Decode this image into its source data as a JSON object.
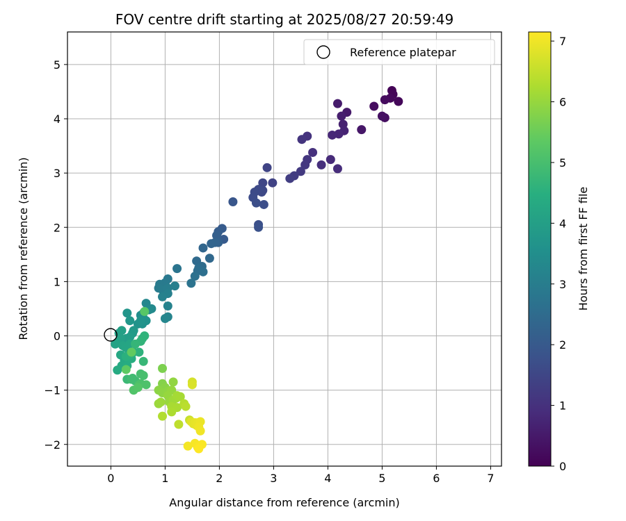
{
  "chart_data": {
    "type": "scatter",
    "title": "FOV centre drift starting at 2025/08/27 20:59:49",
    "xlabel": "Angular distance from reference (arcmin)",
    "ylabel": "Rotation from reference (arcmin)",
    "xlim": [
      -0.8,
      7.2
    ],
    "ylim": [
      -2.4,
      5.6
    ],
    "xticks": [
      0,
      1,
      2,
      3,
      4,
      5,
      6,
      7
    ],
    "yticks": [
      -2,
      -1,
      0,
      1,
      2,
      3,
      4,
      5
    ],
    "ytick_labels": [
      "−2",
      "−1",
      "0",
      "1",
      "2",
      "3",
      "4",
      "5"
    ],
    "grid": true,
    "colormap": "viridis",
    "colorbar": {
      "label": "Hours from first FF file",
      "range": [
        0,
        7.15
      ],
      "ticks": [
        0,
        1,
        2,
        3,
        4,
        5,
        6,
        7
      ]
    },
    "legend": {
      "position": "top-right",
      "entries": [
        {
          "label": "Reference platepar",
          "marker": "open-circle",
          "color": "#000000"
        }
      ]
    },
    "reference_point": {
      "x": 0,
      "y": 0
    },
    "points": [
      {
        "x": 5.18,
        "y": 4.52,
        "h": 0.05
      },
      {
        "x": 5.2,
        "y": 4.45,
        "h": 0.08
      },
      {
        "x": 5.3,
        "y": 4.32,
        "h": 0.12
      },
      {
        "x": 5.15,
        "y": 4.38,
        "h": 0.15
      },
      {
        "x": 5.05,
        "y": 4.35,
        "h": 0.2
      },
      {
        "x": 4.85,
        "y": 4.23,
        "h": 0.25
      },
      {
        "x": 5.05,
        "y": 4.02,
        "h": 0.28
      },
      {
        "x": 5.0,
        "y": 4.05,
        "h": 0.32
      },
      {
        "x": 4.62,
        "y": 3.8,
        "h": 0.45
      },
      {
        "x": 4.35,
        "y": 4.12,
        "h": 0.5
      },
      {
        "x": 4.18,
        "y": 4.28,
        "h": 0.55
      },
      {
        "x": 4.25,
        "y": 4.05,
        "h": 0.6
      },
      {
        "x": 4.28,
        "y": 3.9,
        "h": 0.65
      },
      {
        "x": 4.3,
        "y": 3.78,
        "h": 0.7
      },
      {
        "x": 4.2,
        "y": 3.72,
        "h": 0.75
      },
      {
        "x": 4.08,
        "y": 3.7,
        "h": 0.8
      },
      {
        "x": 4.05,
        "y": 3.25,
        "h": 0.85
      },
      {
        "x": 4.18,
        "y": 3.08,
        "h": 0.9
      },
      {
        "x": 3.88,
        "y": 3.15,
        "h": 0.95
      },
      {
        "x": 3.72,
        "y": 3.38,
        "h": 1.0
      },
      {
        "x": 3.62,
        "y": 3.68,
        "h": 1.05
      },
      {
        "x": 3.52,
        "y": 3.62,
        "h": 1.08
      },
      {
        "x": 3.62,
        "y": 3.25,
        "h": 1.12
      },
      {
        "x": 3.58,
        "y": 3.15,
        "h": 1.15
      },
      {
        "x": 3.5,
        "y": 3.03,
        "h": 1.2
      },
      {
        "x": 3.38,
        "y": 2.95,
        "h": 1.25
      },
      {
        "x": 3.3,
        "y": 2.9,
        "h": 1.3
      },
      {
        "x": 2.98,
        "y": 2.82,
        "h": 1.4
      },
      {
        "x": 2.88,
        "y": 3.1,
        "h": 1.45
      },
      {
        "x": 2.8,
        "y": 2.82,
        "h": 1.5
      },
      {
        "x": 2.8,
        "y": 2.68,
        "h": 1.55
      },
      {
        "x": 2.78,
        "y": 2.65,
        "h": 1.58
      },
      {
        "x": 2.72,
        "y": 2.7,
        "h": 1.6
      },
      {
        "x": 2.65,
        "y": 2.65,
        "h": 1.62
      },
      {
        "x": 2.62,
        "y": 2.55,
        "h": 1.65
      },
      {
        "x": 2.68,
        "y": 2.45,
        "h": 1.68
      },
      {
        "x": 2.82,
        "y": 2.42,
        "h": 1.7
      },
      {
        "x": 2.72,
        "y": 2.05,
        "h": 1.75
      },
      {
        "x": 2.72,
        "y": 2.0,
        "h": 1.8
      },
      {
        "x": 2.25,
        "y": 2.47,
        "h": 1.9
      },
      {
        "x": 2.08,
        "y": 1.78,
        "h": 2.0
      },
      {
        "x": 2.05,
        "y": 1.98,
        "h": 2.05
      },
      {
        "x": 1.98,
        "y": 1.92,
        "h": 2.1
      },
      {
        "x": 1.95,
        "y": 1.85,
        "h": 2.15
      },
      {
        "x": 1.98,
        "y": 1.72,
        "h": 2.2
      },
      {
        "x": 1.92,
        "y": 1.72,
        "h": 2.25
      },
      {
        "x": 1.85,
        "y": 1.7,
        "h": 2.3
      },
      {
        "x": 1.7,
        "y": 1.62,
        "h": 2.35
      },
      {
        "x": 1.82,
        "y": 1.43,
        "h": 2.4
      },
      {
        "x": 1.58,
        "y": 1.38,
        "h": 2.45
      },
      {
        "x": 1.68,
        "y": 1.28,
        "h": 2.5
      },
      {
        "x": 1.62,
        "y": 1.25,
        "h": 2.55
      },
      {
        "x": 1.6,
        "y": 1.2,
        "h": 2.58
      },
      {
        "x": 1.7,
        "y": 1.18,
        "h": 2.6
      },
      {
        "x": 1.55,
        "y": 1.1,
        "h": 2.65
      },
      {
        "x": 1.48,
        "y": 0.97,
        "h": 2.7
      },
      {
        "x": 1.22,
        "y": 1.24,
        "h": 2.75
      },
      {
        "x": 1.05,
        "y": 1.05,
        "h": 2.85
      },
      {
        "x": 1.0,
        "y": 0.98,
        "h": 2.9
      },
      {
        "x": 0.9,
        "y": 0.95,
        "h": 2.92
      },
      {
        "x": 0.88,
        "y": 0.88,
        "h": 2.95
      },
      {
        "x": 0.95,
        "y": 0.85,
        "h": 2.98
      },
      {
        "x": 1.05,
        "y": 0.88,
        "h": 3.0
      },
      {
        "x": 1.18,
        "y": 0.92,
        "h": 3.05
      },
      {
        "x": 1.05,
        "y": 0.78,
        "h": 3.08
      },
      {
        "x": 0.95,
        "y": 0.72,
        "h": 3.1
      },
      {
        "x": 1.05,
        "y": 0.55,
        "h": 3.15
      },
      {
        "x": 1.05,
        "y": 0.35,
        "h": 3.2
      },
      {
        "x": 1.0,
        "y": 0.32,
        "h": 3.25
      },
      {
        "x": 0.65,
        "y": 0.6,
        "h": 3.3
      },
      {
        "x": 0.75,
        "y": 0.5,
        "h": 3.35
      },
      {
        "x": 0.7,
        "y": 0.48,
        "h": 3.4
      },
      {
        "x": 0.6,
        "y": 0.42,
        "h": 3.45
      },
      {
        "x": 0.55,
        "y": 0.38,
        "h": 3.5
      },
      {
        "x": 0.62,
        "y": 0.3,
        "h": 3.55
      },
      {
        "x": 0.65,
        "y": 0.28,
        "h": 3.6
      },
      {
        "x": 0.58,
        "y": 0.22,
        "h": 3.62
      },
      {
        "x": 0.5,
        "y": 0.22,
        "h": 3.65
      },
      {
        "x": 0.55,
        "y": 0.28,
        "h": 3.68
      },
      {
        "x": 0.3,
        "y": 0.42,
        "h": 3.7
      },
      {
        "x": 0.35,
        "y": 0.28,
        "h": 3.75
      },
      {
        "x": 0.42,
        "y": 0.1,
        "h": 3.8
      },
      {
        "x": 0.4,
        "y": 0.05,
        "h": 3.85
      },
      {
        "x": 0.35,
        "y": -0.02,
        "h": 3.9
      },
      {
        "x": 0.28,
        "y": -0.05,
        "h": 3.95
      },
      {
        "x": 0.2,
        "y": 0.1,
        "h": 4.0
      },
      {
        "x": 0.15,
        "y": 0.05,
        "h": 4.02
      },
      {
        "x": 0.18,
        "y": -0.05,
        "h": 4.05
      },
      {
        "x": 0.12,
        "y": -0.12,
        "h": 4.08
      },
      {
        "x": 0.08,
        "y": -0.15,
        "h": 4.1
      },
      {
        "x": 0.22,
        "y": -0.18,
        "h": 4.15
      },
      {
        "x": 0.28,
        "y": -0.22,
        "h": 4.18
      },
      {
        "x": 0.35,
        "y": -0.15,
        "h": 4.2
      },
      {
        "x": 0.18,
        "y": -0.35,
        "h": 4.25
      },
      {
        "x": 0.25,
        "y": -0.45,
        "h": 4.28
      },
      {
        "x": 0.2,
        "y": -0.55,
        "h": 4.3
      },
      {
        "x": 0.12,
        "y": -0.63,
        "h": 4.35
      },
      {
        "x": 0.3,
        "y": -0.55,
        "h": 4.4
      },
      {
        "x": 0.38,
        "y": -0.42,
        "h": 4.45
      },
      {
        "x": 0.42,
        "y": -0.3,
        "h": 4.5
      },
      {
        "x": 0.28,
        "y": -0.38,
        "h": 4.52
      },
      {
        "x": 0.35,
        "y": -0.35,
        "h": 4.55
      },
      {
        "x": 0.52,
        "y": -0.3,
        "h": 4.58
      },
      {
        "x": 0.58,
        "y": -0.05,
        "h": 4.6
      },
      {
        "x": 0.62,
        "y": 0.0,
        "h": 4.62
      },
      {
        "x": 0.55,
        "y": -0.1,
        "h": 4.65
      },
      {
        "x": 0.45,
        "y": -0.15,
        "h": 4.7
      },
      {
        "x": 0.6,
        "y": -0.47,
        "h": 4.75
      },
      {
        "x": 0.3,
        "y": -0.8,
        "h": 4.8
      },
      {
        "x": 0.4,
        "y": -0.78,
        "h": 4.85
      },
      {
        "x": 0.45,
        "y": -0.83,
        "h": 4.88
      },
      {
        "x": 0.38,
        "y": -0.8,
        "h": 4.9
      },
      {
        "x": 0.55,
        "y": -0.7,
        "h": 4.95
      },
      {
        "x": 0.6,
        "y": -0.73,
        "h": 5.0
      },
      {
        "x": 0.55,
        "y": -0.88,
        "h": 5.05
      },
      {
        "x": 0.52,
        "y": -0.9,
        "h": 5.08
      },
      {
        "x": 0.65,
        "y": -0.9,
        "h": 5.1
      },
      {
        "x": 0.42,
        "y": -1.0,
        "h": 5.15
      },
      {
        "x": 0.5,
        "y": -0.95,
        "h": 5.2
      },
      {
        "x": 0.62,
        "y": 0.45,
        "h": 5.25
      },
      {
        "x": 0.28,
        "y": -0.62,
        "h": 5.35
      },
      {
        "x": 0.38,
        "y": -0.3,
        "h": 5.4
      },
      {
        "x": 0.95,
        "y": -0.6,
        "h": 5.7
      },
      {
        "x": 0.95,
        "y": -0.88,
        "h": 5.8
      },
      {
        "x": 1.0,
        "y": -0.95,
        "h": 5.85
      },
      {
        "x": 0.88,
        "y": -1.0,
        "h": 5.88
      },
      {
        "x": 0.95,
        "y": -1.05,
        "h": 5.9
      },
      {
        "x": 1.05,
        "y": -1.02,
        "h": 5.92
      },
      {
        "x": 1.15,
        "y": -0.85,
        "h": 5.95
      },
      {
        "x": 1.12,
        "y": -1.0,
        "h": 5.98
      },
      {
        "x": 1.05,
        "y": -1.1,
        "h": 6.0
      },
      {
        "x": 1.08,
        "y": -1.22,
        "h": 6.02
      },
      {
        "x": 0.88,
        "y": -1.25,
        "h": 6.05
      },
      {
        "x": 0.92,
        "y": -1.22,
        "h": 6.08
      },
      {
        "x": 1.15,
        "y": -1.18,
        "h": 6.1
      },
      {
        "x": 1.2,
        "y": -1.15,
        "h": 6.12
      },
      {
        "x": 1.22,
        "y": -1.1,
        "h": 6.15
      },
      {
        "x": 1.28,
        "y": -1.12,
        "h": 6.18
      },
      {
        "x": 1.12,
        "y": -1.3,
        "h": 6.2
      },
      {
        "x": 1.22,
        "y": -1.32,
        "h": 6.22
      },
      {
        "x": 1.12,
        "y": -1.4,
        "h": 6.25
      },
      {
        "x": 0.95,
        "y": -1.48,
        "h": 6.3
      },
      {
        "x": 1.35,
        "y": -1.25,
        "h": 6.35
      },
      {
        "x": 1.38,
        "y": -1.3,
        "h": 6.4
      },
      {
        "x": 1.25,
        "y": -1.63,
        "h": 6.45
      },
      {
        "x": 1.45,
        "y": -1.55,
        "h": 6.55
      },
      {
        "x": 1.5,
        "y": -0.85,
        "h": 6.7
      },
      {
        "x": 1.5,
        "y": -0.9,
        "h": 6.75
      },
      {
        "x": 1.48,
        "y": -1.58,
        "h": 6.8
      },
      {
        "x": 1.52,
        "y": -1.62,
        "h": 6.85
      },
      {
        "x": 1.55,
        "y": -1.6,
        "h": 6.88
      },
      {
        "x": 1.58,
        "y": -1.65,
        "h": 6.9
      },
      {
        "x": 1.6,
        "y": -1.6,
        "h": 6.92
      },
      {
        "x": 1.65,
        "y": -1.58,
        "h": 6.95
      },
      {
        "x": 1.62,
        "y": -1.68,
        "h": 6.98
      },
      {
        "x": 1.65,
        "y": -1.75,
        "h": 7.0
      },
      {
        "x": 1.42,
        "y": -2.03,
        "h": 7.05
      },
      {
        "x": 1.55,
        "y": -1.98,
        "h": 7.08
      },
      {
        "x": 1.6,
        "y": -2.05,
        "h": 7.1
      },
      {
        "x": 1.68,
        "y": -2.0,
        "h": 7.12
      },
      {
        "x": 1.62,
        "y": -2.08,
        "h": 7.15
      }
    ]
  }
}
